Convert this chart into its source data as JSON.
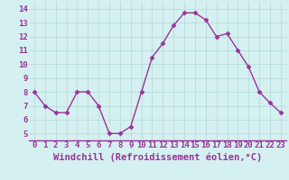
{
  "x": [
    0,
    1,
    2,
    3,
    4,
    5,
    6,
    7,
    8,
    9,
    10,
    11,
    12,
    13,
    14,
    15,
    16,
    17,
    18,
    19,
    20,
    21,
    22,
    23
  ],
  "y": [
    8.0,
    7.0,
    6.5,
    6.5,
    8.0,
    8.0,
    7.0,
    5.0,
    5.0,
    5.5,
    8.0,
    10.5,
    11.5,
    12.8,
    13.7,
    13.7,
    13.2,
    12.0,
    12.2,
    11.0,
    9.8,
    8.0,
    7.2,
    6.5
  ],
  "line_color": "#993399",
  "marker": "D",
  "markersize": 2.5,
  "linewidth": 1.0,
  "bg_color": "#d5f0f0",
  "grid_color": "#b0d8d8",
  "xlabel": "Windchill (Refroidissement éolien,°C)",
  "xlabel_color": "#993399",
  "xlabel_fontsize": 7.5,
  "tick_color": "#993399",
  "tick_fontsize": 6.5,
  "xlim": [
    -0.5,
    23.5
  ],
  "ylim": [
    4.5,
    14.5
  ],
  "yticks": [
    5,
    6,
    7,
    8,
    9,
    10,
    11,
    12,
    13,
    14
  ],
  "xticks": [
    0,
    1,
    2,
    3,
    4,
    5,
    6,
    7,
    8,
    9,
    10,
    11,
    12,
    13,
    14,
    15,
    16,
    17,
    18,
    19,
    20,
    21,
    22,
    23
  ],
  "spine_color": "#993399"
}
